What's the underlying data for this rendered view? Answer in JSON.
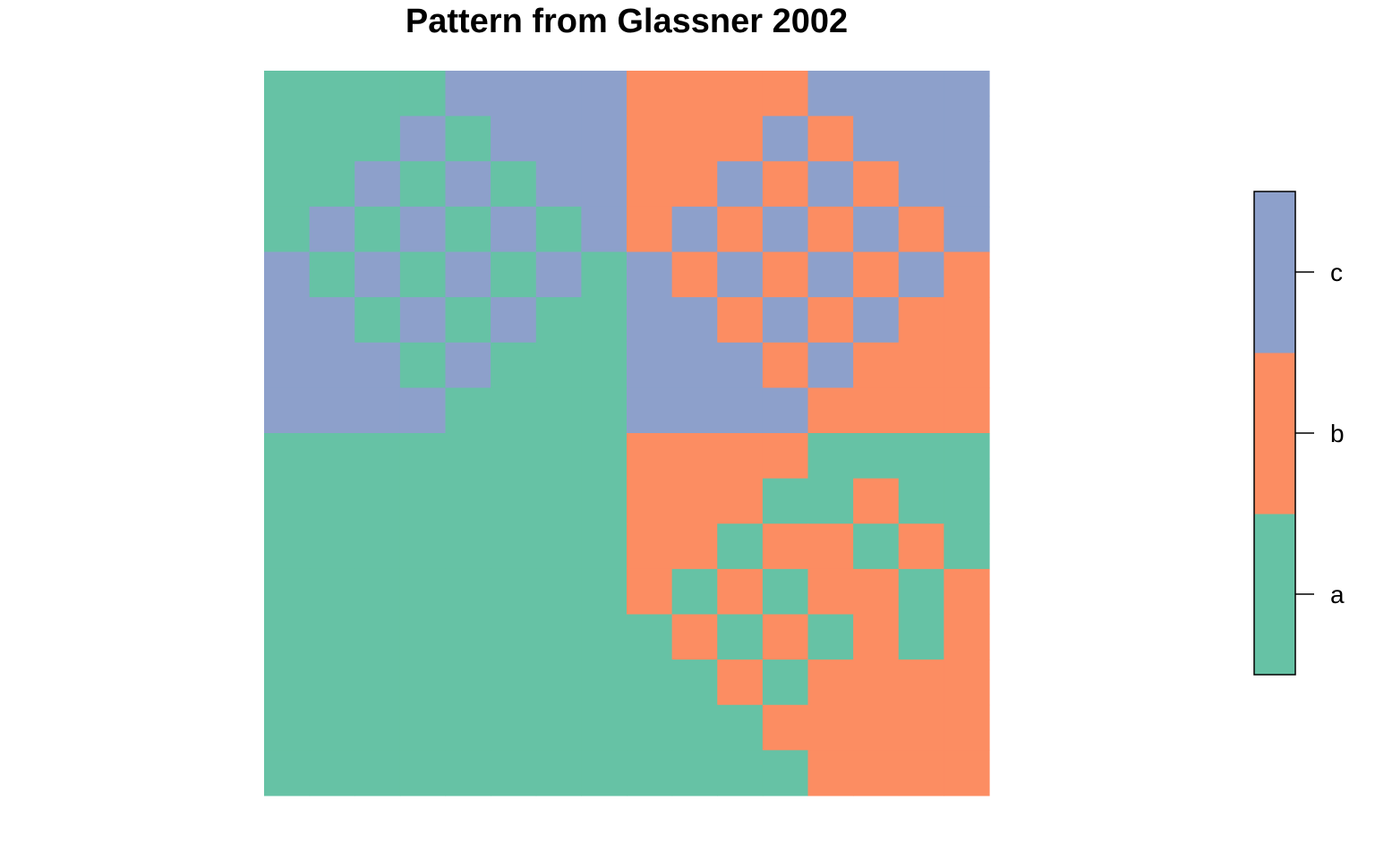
{
  "chart_data": {
    "type": "heatmap",
    "title": "Pattern from Glassner 2002",
    "nrow": 16,
    "ncol": 16,
    "legend": {
      "categories": [
        "a",
        "b",
        "c"
      ],
      "placement": "right"
    },
    "colors": {
      "a": "#66c2a5",
      "b": "#fc8d62",
      "c": "#8da0cb"
    },
    "grid": [
      "aaaacccc",
      "bbbbcccc",
      "aaacaccc",
      "bbbcbccc",
      "aacacacc",
      "bbcbcbcc",
      "acacacac",
      "bcbcbcbc",
      "cacacaca",
      "cbcbcbcb",
      "ccacacaa",
      "ccbcbcbb",
      "cccacaaa",
      "cccbcbbb",
      "ccccaaaa",
      "ccccbbbb",
      "aaaaaaaa",
      "bbbbaaaa",
      "aaaaaaaa",
      "bbbaabaa",
      "aaaaaaaa",
      "bbabbaba",
      "aaaaaaaa",
      "bababbab",
      "aaaaaaaa",
      "abababab",
      "aaaaaaaa",
      "aababbbb",
      "aaaaaaaa",
      "aaabbbbb",
      "aaaaaaaa",
      "aaaabbbb"
    ]
  }
}
